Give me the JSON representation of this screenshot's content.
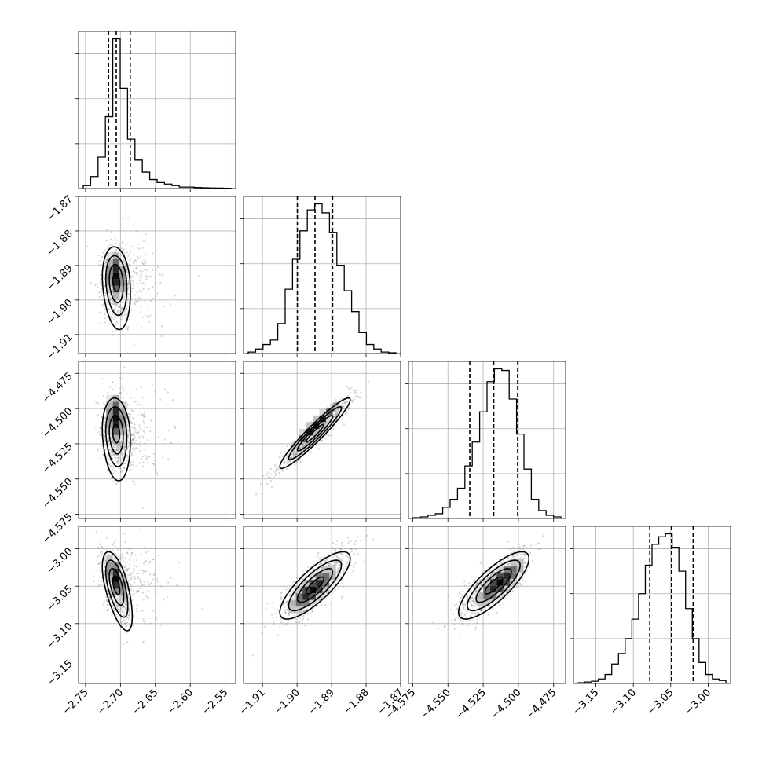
{
  "chart_data": {
    "type": "corner",
    "title": "",
    "grid": true,
    "parameters": [
      {
        "index": 0,
        "xlabel": "",
        "range": [
          -2.76,
          -2.535
        ],
        "ticks": [
          -2.75,
          -2.7,
          -2.65,
          -2.6,
          -2.55
        ],
        "tick_labels": [
          "−2.75",
          "−2.70",
          "−2.65",
          "−2.60",
          "−2.55"
        ],
        "quantiles": [
          -2.717,
          -2.706,
          -2.686
        ],
        "histogram": [
          0.02,
          0.08,
          0.21,
          0.48,
          1.0,
          0.67,
          0.33,
          0.19,
          0.11,
          0.06,
          0.04,
          0.03,
          0.02,
          0.01,
          0.01,
          0.007,
          0.005,
          0.004,
          0.003,
          0.002
        ]
      },
      {
        "index": 1,
        "xlabel": "",
        "range": [
          -1.9155,
          -1.87
        ],
        "ticks": [
          -1.91,
          -1.9,
          -1.89,
          -1.88,
          -1.87
        ],
        "tick_labels": [
          "−1.91",
          "−1.90",
          "−1.89",
          "−1.88",
          "−1.87"
        ],
        "quantiles": [
          -1.8999,
          -1.8948,
          -1.8897
        ],
        "histogram": [
          0.01,
          0.03,
          0.06,
          0.09,
          0.2,
          0.43,
          0.63,
          0.82,
          0.96,
          1.0,
          0.94,
          0.81,
          0.59,
          0.42,
          0.28,
          0.14,
          0.06,
          0.03,
          0.01,
          0.005
        ]
      },
      {
        "index": 2,
        "xlabel": "",
        "range": [
          -4.578,
          -4.4665
        ],
        "ticks": [
          -4.575,
          -4.55,
          -4.525,
          -4.5,
          -4.475
        ],
        "tick_labels": [
          "−4.575",
          "−4.550",
          "−4.525",
          "−4.500",
          "−4.475"
        ],
        "quantiles": [
          -4.5345,
          -4.5175,
          -4.5005
        ],
        "histogram": [
          0.005,
          0.01,
          0.02,
          0.03,
          0.07,
          0.12,
          0.19,
          0.33,
          0.48,
          0.67,
          0.86,
          0.94,
          0.93,
          0.75,
          0.53,
          0.31,
          0.12,
          0.05,
          0.02,
          0.01
        ]
      },
      {
        "index": 3,
        "xlabel": "",
        "range": [
          -3.18,
          -2.97
        ],
        "ticks": [
          -3.15,
          -3.1,
          -3.05,
          -3.0
        ],
        "tick_labels": [
          "−3.15",
          "−3.10",
          "−3.05",
          "−3.00"
        ],
        "quantiles": [
          -3.078,
          -3.049,
          -3.02
        ],
        "histogram": [
          0.005,
          0.01,
          0.015,
          0.03,
          0.06,
          0.13,
          0.2,
          0.3,
          0.43,
          0.6,
          0.79,
          0.93,
          0.98,
          1.0,
          0.91,
          0.75,
          0.5,
          0.3,
          0.14,
          0.06,
          0.03,
          0.02
        ]
      }
    ],
    "pairs": [
      {
        "row": 1,
        "col": 0,
        "mean": [
          -2.706,
          -1.8948
        ],
        "sd": [
          0.01,
          0.0051
        ],
        "rho": -0.15,
        "tail": "right",
        "peak": [
          -2.706,
          -1.893
        ]
      },
      {
        "row": 2,
        "col": 0,
        "mean": [
          -2.706,
          -4.5175
        ],
        "sd": [
          0.01,
          0.0125
        ],
        "rho": -0.12,
        "tail": "right",
        "peak": [
          -2.706,
          -4.507
        ]
      },
      {
        "row": 2,
        "col": 1,
        "mean": [
          -1.8948,
          -4.5175
        ],
        "sd": [
          0.0051,
          0.0125
        ],
        "rho": 0.95,
        "tail": "none",
        "peak": [
          -1.8945,
          -4.512
        ]
      },
      {
        "row": 3,
        "col": 0,
        "mean": [
          -2.706,
          -3.049
        ],
        "sd": [
          0.01,
          0.0225
        ],
        "rho": -0.55,
        "tail": "right",
        "peak": [
          -2.706,
          -3.04
        ]
      },
      {
        "row": 3,
        "col": 1,
        "mean": [
          -1.8948,
          -3.049
        ],
        "sd": [
          0.0051,
          0.0225
        ],
        "rho": 0.8,
        "tail": "none",
        "peak": [
          -1.8955,
          -3.055
        ]
      },
      {
        "row": 3,
        "col": 2,
        "mean": [
          -4.5175,
          -3.049
        ],
        "sd": [
          0.0125,
          0.0225
        ],
        "rho": 0.8,
        "tail": "none",
        "peak": [
          -4.513,
          -3.045
        ]
      }
    ],
    "contour_levels_sigma": [
      0.5,
      1.0,
      1.5,
      2.0
    ],
    "colors": {
      "line": "#000000",
      "grid": "#b0b0b0",
      "samples": "#888888",
      "density_max": "#000000",
      "density_min": "#ffffff"
    }
  }
}
